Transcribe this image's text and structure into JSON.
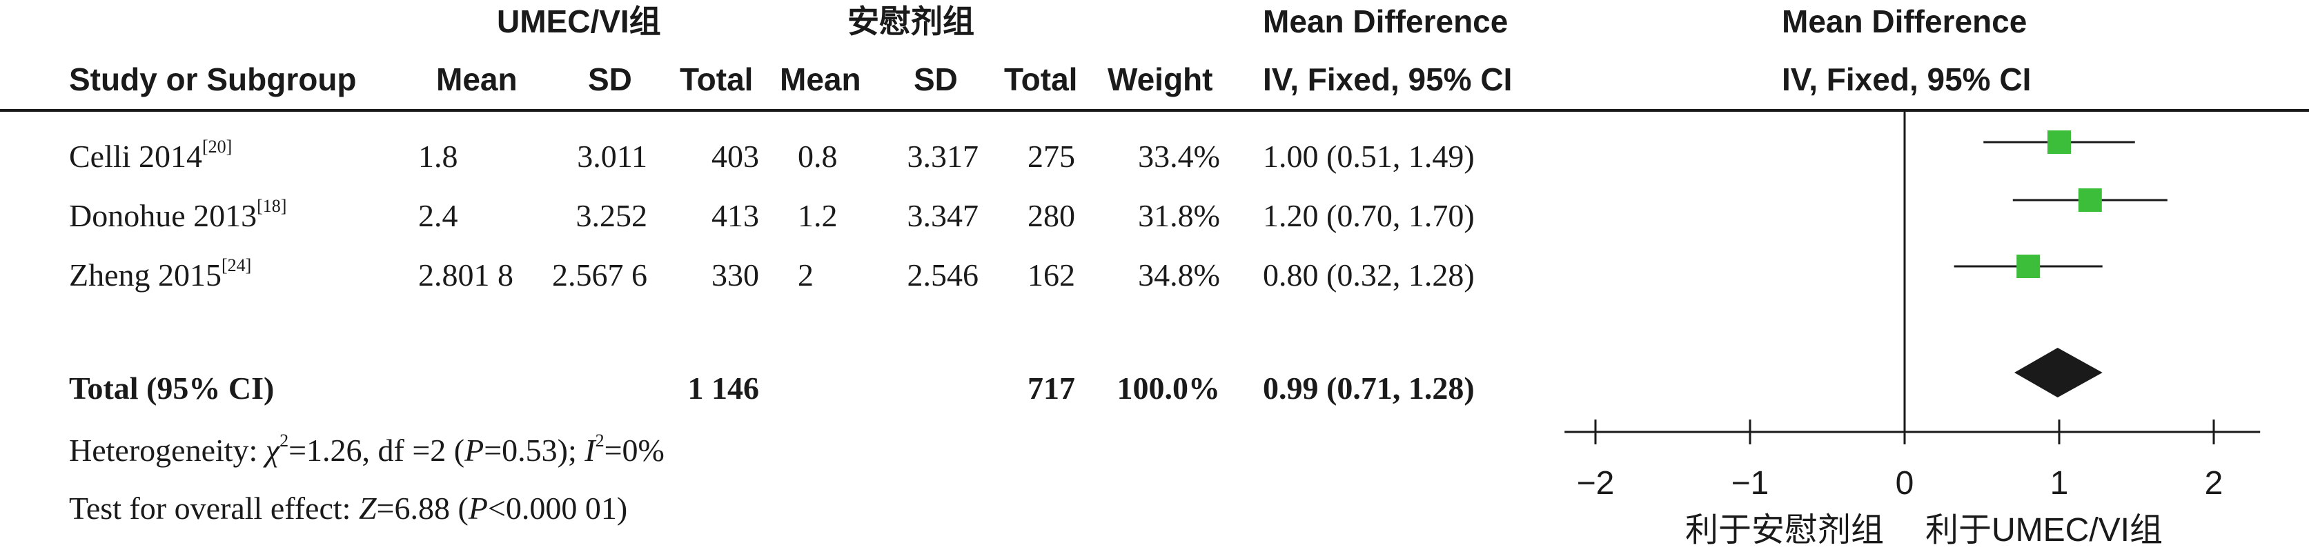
{
  "header": {
    "group1": "UMEC/VI组",
    "group2": "安慰剂组",
    "md_col_1": "Mean Difference",
    "md_col_2": "IV, Fixed, 95% CI",
    "plot_col_1": "Mean Difference",
    "plot_col_2": "IV, Fixed, 95% CI",
    "study": "Study or Subgroup",
    "mean": "Mean",
    "sd": "SD",
    "total": "Total",
    "weight": "Weight"
  },
  "studies": [
    {
      "name": "Celli 2014",
      "ref": "[20]",
      "mean1": "1.8",
      "sd1": "3.011",
      "n1": "403",
      "mean2": "0.8",
      "sd2": "3.317",
      "n2": "275",
      "weight": "33.4%",
      "ci": "1.00 (0.51, 1.49)"
    },
    {
      "name": "Donohue 2013",
      "ref": "[18]",
      "mean1": "2.4",
      "sd1": "3.252",
      "n1": "413",
      "mean2": "1.2",
      "sd2": "3.347",
      "n2": "280",
      "weight": "31.8%",
      "ci": "1.20 (0.70, 1.70)"
    },
    {
      "name": "Zheng 2015",
      "ref": "[24]",
      "mean1": "2.801 8",
      "sd1": "2.567 6",
      "n1": "330",
      "mean2": "2",
      "sd2": "2.546",
      "n2": "162",
      "weight": "34.8%",
      "ci": "0.80 (0.32, 1.28)"
    }
  ],
  "total": {
    "label": "Total (95% CI)",
    "n1": "1 146",
    "n2": "717",
    "weight": "100.0%",
    "ci": "0.99 (0.71, 1.28)"
  },
  "footnotes": {
    "het_prefix": "Heterogeneity: ",
    "chi": "χ",
    "het_rest1": "=1.26, df =2 (",
    "p": "P",
    "het_rest2": "=0.53); ",
    "i": "I",
    "het_rest3": "=0%",
    "sq": "2",
    "test_prefix": "Test for overall effect: ",
    "z": "Z",
    "test_rest1": "=6.88 (",
    "test_rest2": "<0.000 01)"
  },
  "colors": {
    "square": "#3dbe3a",
    "diamond": "#1a1a1a",
    "line": "#1a1a1a"
  },
  "chart_data": {
    "type": "forest",
    "xlim": [
      -2.2,
      2.3
    ],
    "ticks": [
      -2,
      -1,
      0,
      1,
      2
    ],
    "tick_labels": [
      "−2",
      "−1",
      "0",
      "1",
      "2"
    ],
    "favours_left": "利于安慰剂组",
    "favours_right": "利于UMEC/VI组",
    "studies": [
      {
        "name": "Celli 2014",
        "md": 1.0,
        "lo": 0.51,
        "hi": 1.49
      },
      {
        "name": "Donohue 2013",
        "md": 1.2,
        "lo": 0.7,
        "hi": 1.7
      },
      {
        "name": "Zheng 2015",
        "md": 0.8,
        "lo": 0.32,
        "hi": 1.28
      }
    ],
    "pooled": {
      "md": 0.99,
      "lo": 0.71,
      "hi": 1.28
    }
  }
}
